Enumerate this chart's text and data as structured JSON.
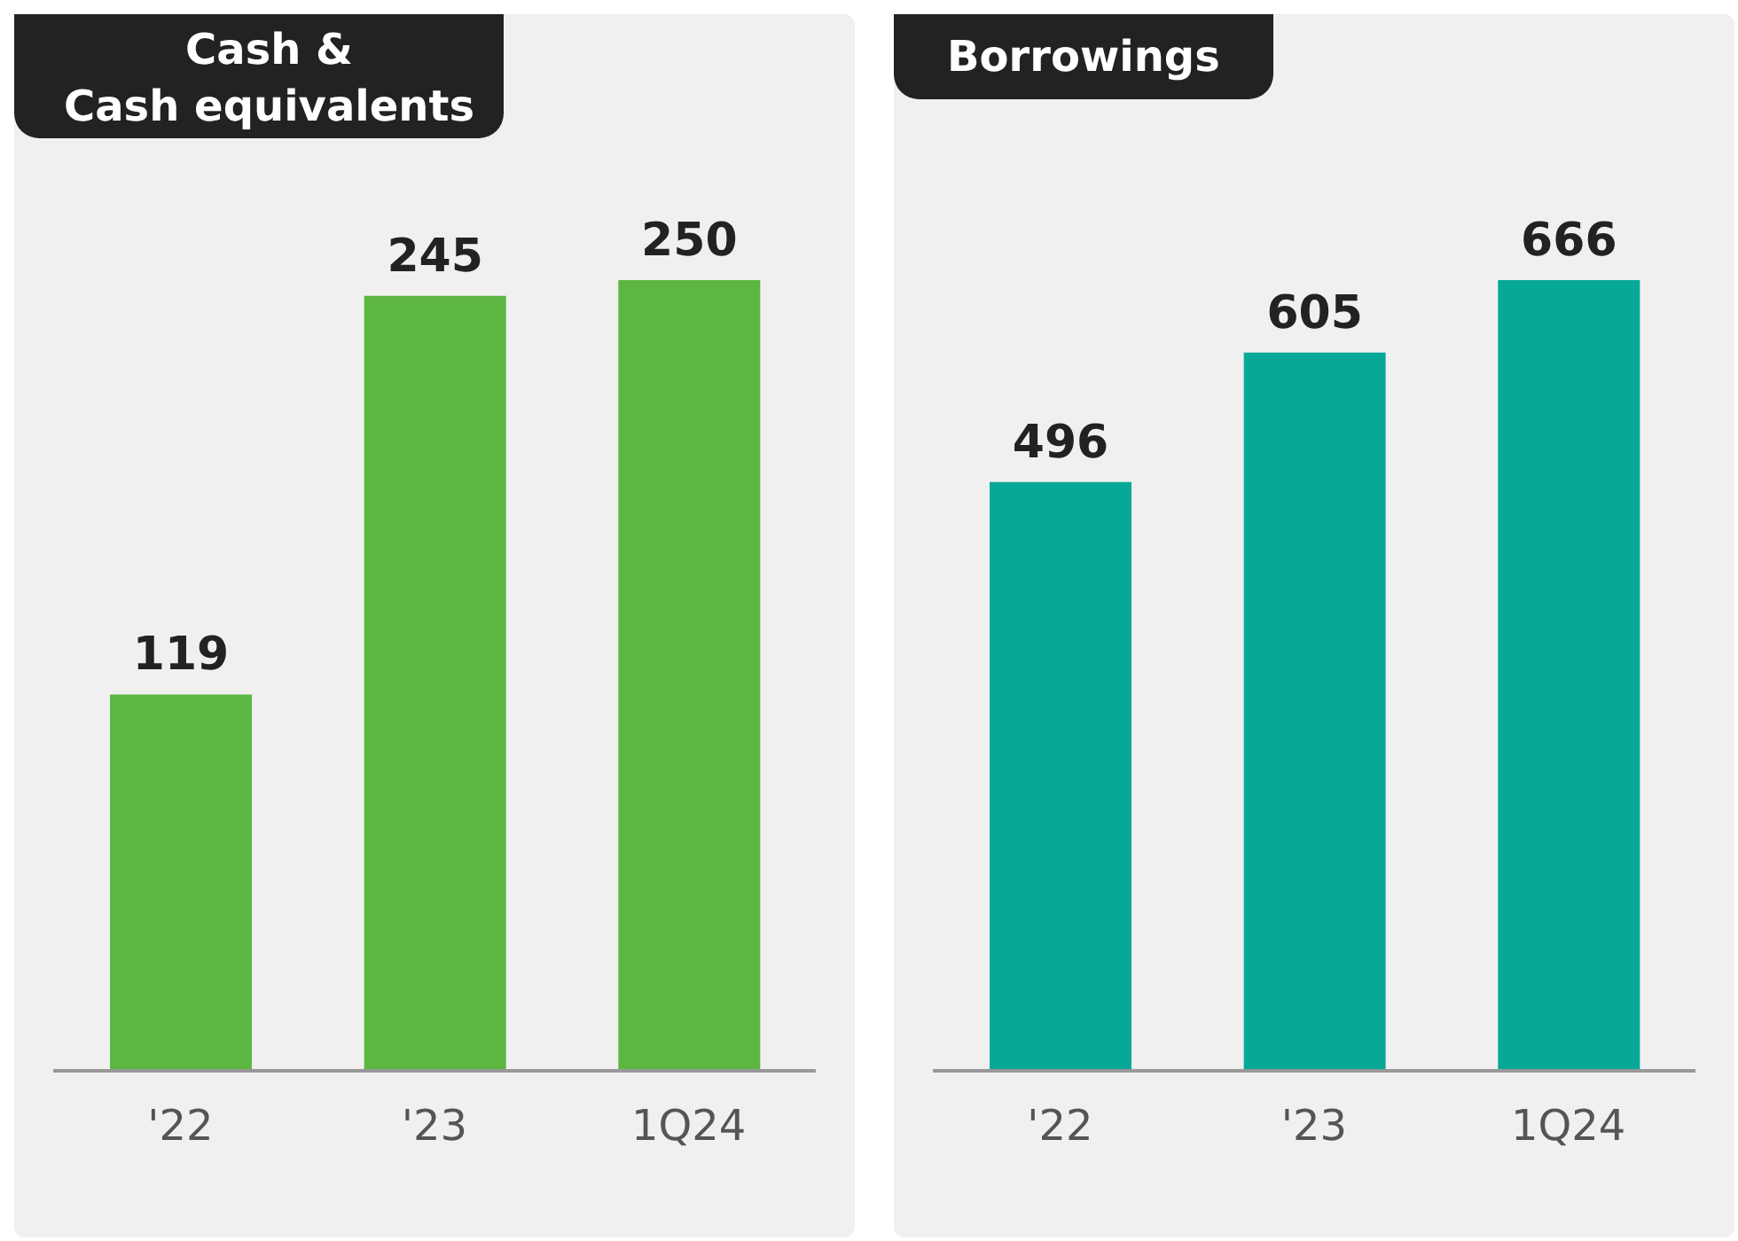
{
  "chart_data": [
    {
      "type": "bar",
      "title": "Cash &\nCash equivalents",
      "categories": [
        "'22",
        "'23",
        "1Q24"
      ],
      "values": [
        119,
        245,
        250
      ],
      "color": "#5db642",
      "data_labels": true,
      "grid": false,
      "legend": false
    },
    {
      "type": "bar",
      "title": "Borrowings",
      "categories": [
        "'22",
        "'23",
        "1Q24"
      ],
      "values": [
        496,
        605,
        666
      ],
      "color": "#08a898",
      "data_labels": true,
      "grid": false,
      "legend": false
    }
  ]
}
